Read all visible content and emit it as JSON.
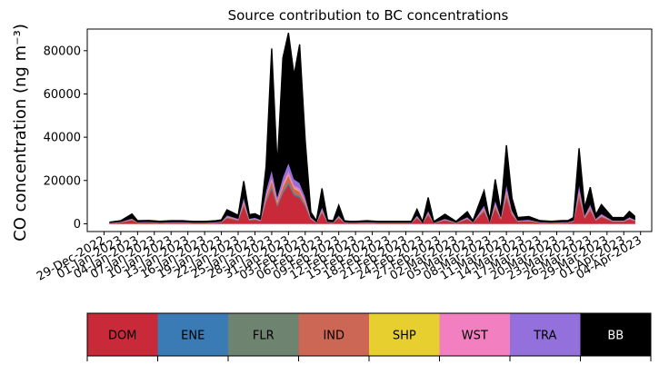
{
  "chart_data": {
    "type": "area",
    "stacked": true,
    "title": "Source contribution to BC concentrations",
    "ylabel": "CO concentration (ng m⁻³)",
    "xlabel": "",
    "ylim": [
      -3600,
      90000
    ],
    "xlim": [
      "2022-12-26",
      "2023-04-06"
    ],
    "yticks": [
      0,
      20000,
      40000,
      60000,
      80000
    ],
    "ytick_labels": [
      "0",
      "20000",
      "40000",
      "60000",
      "80000"
    ],
    "xtick_labels": [
      "29-Dec-2022",
      "01-Jan-2023",
      "04-Jan-2023",
      "07-Jan-2023",
      "10-Jan-2023",
      "13-Jan-2023",
      "16-Jan-2023",
      "19-Jan-2023",
      "22-Jan-2023",
      "25-Jan-2023",
      "28-Jan-2023",
      "31-Jan-2023",
      "03-Feb-2023",
      "06-Feb-2023",
      "09-Feb-2023",
      "12-Feb-2023",
      "15-Feb-2023",
      "18-Feb-2023",
      "21-Feb-2023",
      "24-Feb-2023",
      "27-Feb-2023",
      "02-Mar-2023",
      "05-Mar-2023",
      "08-Mar-2023",
      "11-Mar-2023",
      "14-Mar-2023",
      "17-Mar-2023",
      "20-Mar-2023",
      "23-Mar-2023",
      "26-Mar-2023",
      "29-Mar-2023",
      "01-Apr-2023",
      "04-Apr-2023"
    ],
    "grid": false,
    "legend_position": "bottom",
    "x": [
      "2022-12-30",
      "2023-01-01",
      "2023-01-03",
      "2023-01-04",
      "2023-01-06",
      "2023-01-08",
      "2023-01-10",
      "2023-01-12",
      "2023-01-14",
      "2023-01-16",
      "2023-01-18",
      "2023-01-19",
      "2023-01-20",
      "2023-01-22",
      "2023-01-23",
      "2023-01-24",
      "2023-01-25",
      "2023-01-26",
      "2023-01-27",
      "2023-01-28",
      "2023-01-29",
      "2023-01-30",
      "2023-01-31",
      "2023-02-01",
      "2023-02-02",
      "2023-02-03",
      "2023-02-04",
      "2023-02-05",
      "2023-02-06",
      "2023-02-07",
      "2023-02-08",
      "2023-02-09",
      "2023-02-10",
      "2023-02-11",
      "2023-02-12",
      "2023-02-14",
      "2023-02-16",
      "2023-02-18",
      "2023-02-20",
      "2023-02-22",
      "2023-02-23",
      "2023-02-24",
      "2023-02-25",
      "2023-02-26",
      "2023-02-28",
      "2023-03-02",
      "2023-03-04",
      "2023-03-05",
      "2023-03-07",
      "2023-03-08",
      "2023-03-09",
      "2023-03-10",
      "2023-03-11",
      "2023-03-12",
      "2023-03-13",
      "2023-03-15",
      "2023-03-17",
      "2023-03-19",
      "2023-03-21",
      "2023-03-22",
      "2023-03-23",
      "2023-03-24",
      "2023-03-25",
      "2023-03-26",
      "2023-03-27",
      "2023-03-28",
      "2023-03-30",
      "2023-04-01",
      "2023-04-02",
      "2023-04-03"
    ],
    "series": [
      {
        "name": "DOM",
        "color": "#c82a3a",
        "values": [
          300,
          600,
          1600,
          500,
          600,
          400,
          500,
          500,
          400,
          400,
          500,
          700,
          2500,
          1500,
          8000,
          1500,
          1800,
          1200,
          10000,
          16000,
          8000,
          14000,
          18000,
          13000,
          12000,
          8000,
          2000,
          500,
          5000,
          600,
          500,
          2500,
          500,
          400,
          400,
          500,
          400,
          400,
          400,
          400,
          2500,
          300,
          4000,
          300,
          1500,
          400,
          2000,
          500,
          5500,
          600,
          7000,
          2000,
          12000,
          4000,
          1000,
          1200,
          500,
          400,
          500,
          500,
          1000,
          12000,
          2500,
          6000,
          1500,
          3000,
          1000,
          1000,
          2000,
          1200
        ]
      },
      {
        "name": "ENE",
        "color": "#3a7ab5",
        "values": [
          20,
          30,
          80,
          30,
          30,
          20,
          30,
          30,
          20,
          20,
          30,
          30,
          120,
          80,
          300,
          80,
          90,
          60,
          400,
          600,
          300,
          500,
          700,
          500,
          450,
          300,
          100,
          30,
          200,
          30,
          30,
          100,
          30,
          20,
          20,
          30,
          20,
          20,
          20,
          20,
          100,
          20,
          150,
          20,
          80,
          20,
          100,
          30,
          200,
          30,
          250,
          100,
          400,
          150,
          50,
          60,
          30,
          20,
          30,
          30,
          50,
          400,
          100,
          200,
          80,
          120,
          50,
          50,
          80,
          60
        ]
      },
      {
        "name": "FLR",
        "color": "#6e8370",
        "values": [
          20,
          30,
          80,
          30,
          30,
          20,
          30,
          30,
          20,
          20,
          30,
          30,
          120,
          80,
          300,
          80,
          90,
          60,
          400,
          600,
          300,
          500,
          700,
          500,
          450,
          300,
          100,
          30,
          200,
          30,
          30,
          100,
          30,
          20,
          20,
          30,
          20,
          20,
          20,
          20,
          100,
          20,
          150,
          20,
          80,
          20,
          100,
          30,
          200,
          30,
          250,
          100,
          400,
          150,
          50,
          60,
          30,
          20,
          30,
          30,
          50,
          400,
          100,
          200,
          80,
          120,
          50,
          50,
          80,
          60
        ]
      },
      {
        "name": "IND",
        "color": "#cc6655",
        "values": [
          50,
          100,
          250,
          80,
          100,
          60,
          80,
          80,
          60,
          60,
          80,
          100,
          400,
          250,
          1200,
          250,
          300,
          200,
          1600,
          2600,
          1300,
          2200,
          3000,
          2200,
          2000,
          1300,
          300,
          80,
          800,
          100,
          80,
          400,
          80,
          60,
          60,
          80,
          60,
          60,
          60,
          60,
          400,
          50,
          600,
          50,
          250,
          60,
          300,
          80,
          900,
          100,
          1100,
          300,
          1800,
          600,
          150,
          200,
          80,
          60,
          80,
          80,
          150,
          1800,
          400,
          900,
          250,
          450,
          150,
          150,
          300,
          200
        ]
      },
      {
        "name": "SHP",
        "color": "#e6cf2f",
        "values": [
          10,
          20,
          40,
          15,
          20,
          10,
          15,
          15,
          10,
          10,
          15,
          20,
          60,
          40,
          200,
          40,
          50,
          30,
          250,
          400,
          200,
          350,
          450,
          350,
          300,
          200,
          50,
          15,
          120,
          15,
          15,
          60,
          15,
          10,
          10,
          15,
          10,
          10,
          10,
          10,
          60,
          10,
          100,
          10,
          40,
          10,
          50,
          15,
          150,
          15,
          170,
          50,
          300,
          100,
          25,
          30,
          15,
          10,
          15,
          15,
          25,
          300,
          60,
          150,
          40,
          70,
          25,
          25,
          50,
          30
        ]
      },
      {
        "name": "WST",
        "color": "#f27fbf",
        "values": [
          30,
          60,
          150,
          50,
          60,
          40,
          50,
          50,
          40,
          40,
          50,
          60,
          250,
          150,
          700,
          150,
          180,
          120,
          900,
          1500,
          800,
          1300,
          1700,
          1300,
          1200,
          800,
          200,
          50,
          500,
          60,
          50,
          250,
          50,
          40,
          40,
          50,
          40,
          40,
          40,
          40,
          250,
          30,
          400,
          30,
          150,
          40,
          200,
          50,
          550,
          60,
          700,
          200,
          1100,
          400,
          100,
          120,
          50,
          40,
          50,
          50,
          100,
          1100,
          250,
          550,
          150,
          300,
          100,
          100,
          200,
          120
        ]
      },
      {
        "name": "TRA",
        "color": "#9370db",
        "values": [
          60,
          120,
          300,
          100,
          120,
          80,
          100,
          100,
          80,
          80,
          100,
          120,
          500,
          300,
          1500,
          300,
          350,
          250,
          2000,
          3300,
          1600,
          2800,
          3700,
          2800,
          2500,
          1600,
          400,
          100,
          1000,
          120,
          100,
          500,
          100,
          80,
          80,
          100,
          80,
          80,
          80,
          80,
          500,
          60,
          750,
          60,
          300,
          80,
          400,
          100,
          1100,
          120,
          1400,
          400,
          2300,
          800,
          200,
          250,
          100,
          80,
          100,
          100,
          200,
          2300,
          500,
          1100,
          300,
          600,
          200,
          200,
          400,
          250
        ]
      },
      {
        "name": "BB",
        "color": "#000000",
        "values": [
          250,
          450,
          2000,
          600,
          550,
          500,
          600,
          600,
          450,
          450,
          600,
          700,
          2500,
          1500,
          7500,
          1800,
          1800,
          1400,
          11000,
          56000,
          14000,
          55000,
          60000,
          48000,
          64000,
          26000,
          2200,
          600,
          8500,
          800,
          600,
          4700,
          600,
          470,
          470,
          600,
          470,
          470,
          470,
          470,
          2800,
          400,
          6000,
          500,
          2000,
          470,
          2400,
          600,
          6700,
          800,
          9600,
          2700,
          18000,
          5600,
          1300,
          1400,
          630,
          500,
          630,
          630,
          1300,
          16600,
          3400,
          7800,
          1800,
          4200,
          1300,
          1300,
          2600,
          1500
        ]
      }
    ]
  },
  "legend": {
    "items": [
      {
        "key": "dom",
        "label": "DOM",
        "color": "#c82a3a",
        "text_color": "#000000"
      },
      {
        "key": "ene",
        "label": "ENE",
        "color": "#3a7ab5",
        "text_color": "#000000"
      },
      {
        "key": "flr",
        "label": "FLR",
        "color": "#6e8370",
        "text_color": "#000000"
      },
      {
        "key": "ind",
        "label": "IND",
        "color": "#cc6655",
        "text_color": "#000000"
      },
      {
        "key": "shp",
        "label": "SHP",
        "color": "#e6cf2f",
        "text_color": "#000000"
      },
      {
        "key": "wst",
        "label": "WST",
        "color": "#f27fbf",
        "text_color": "#000000"
      },
      {
        "key": "tra",
        "label": "TRA",
        "color": "#9370db",
        "text_color": "#000000"
      },
      {
        "key": "bb",
        "label": "BB",
        "color": "#000000",
        "text_color": "#ffffff"
      }
    ]
  }
}
